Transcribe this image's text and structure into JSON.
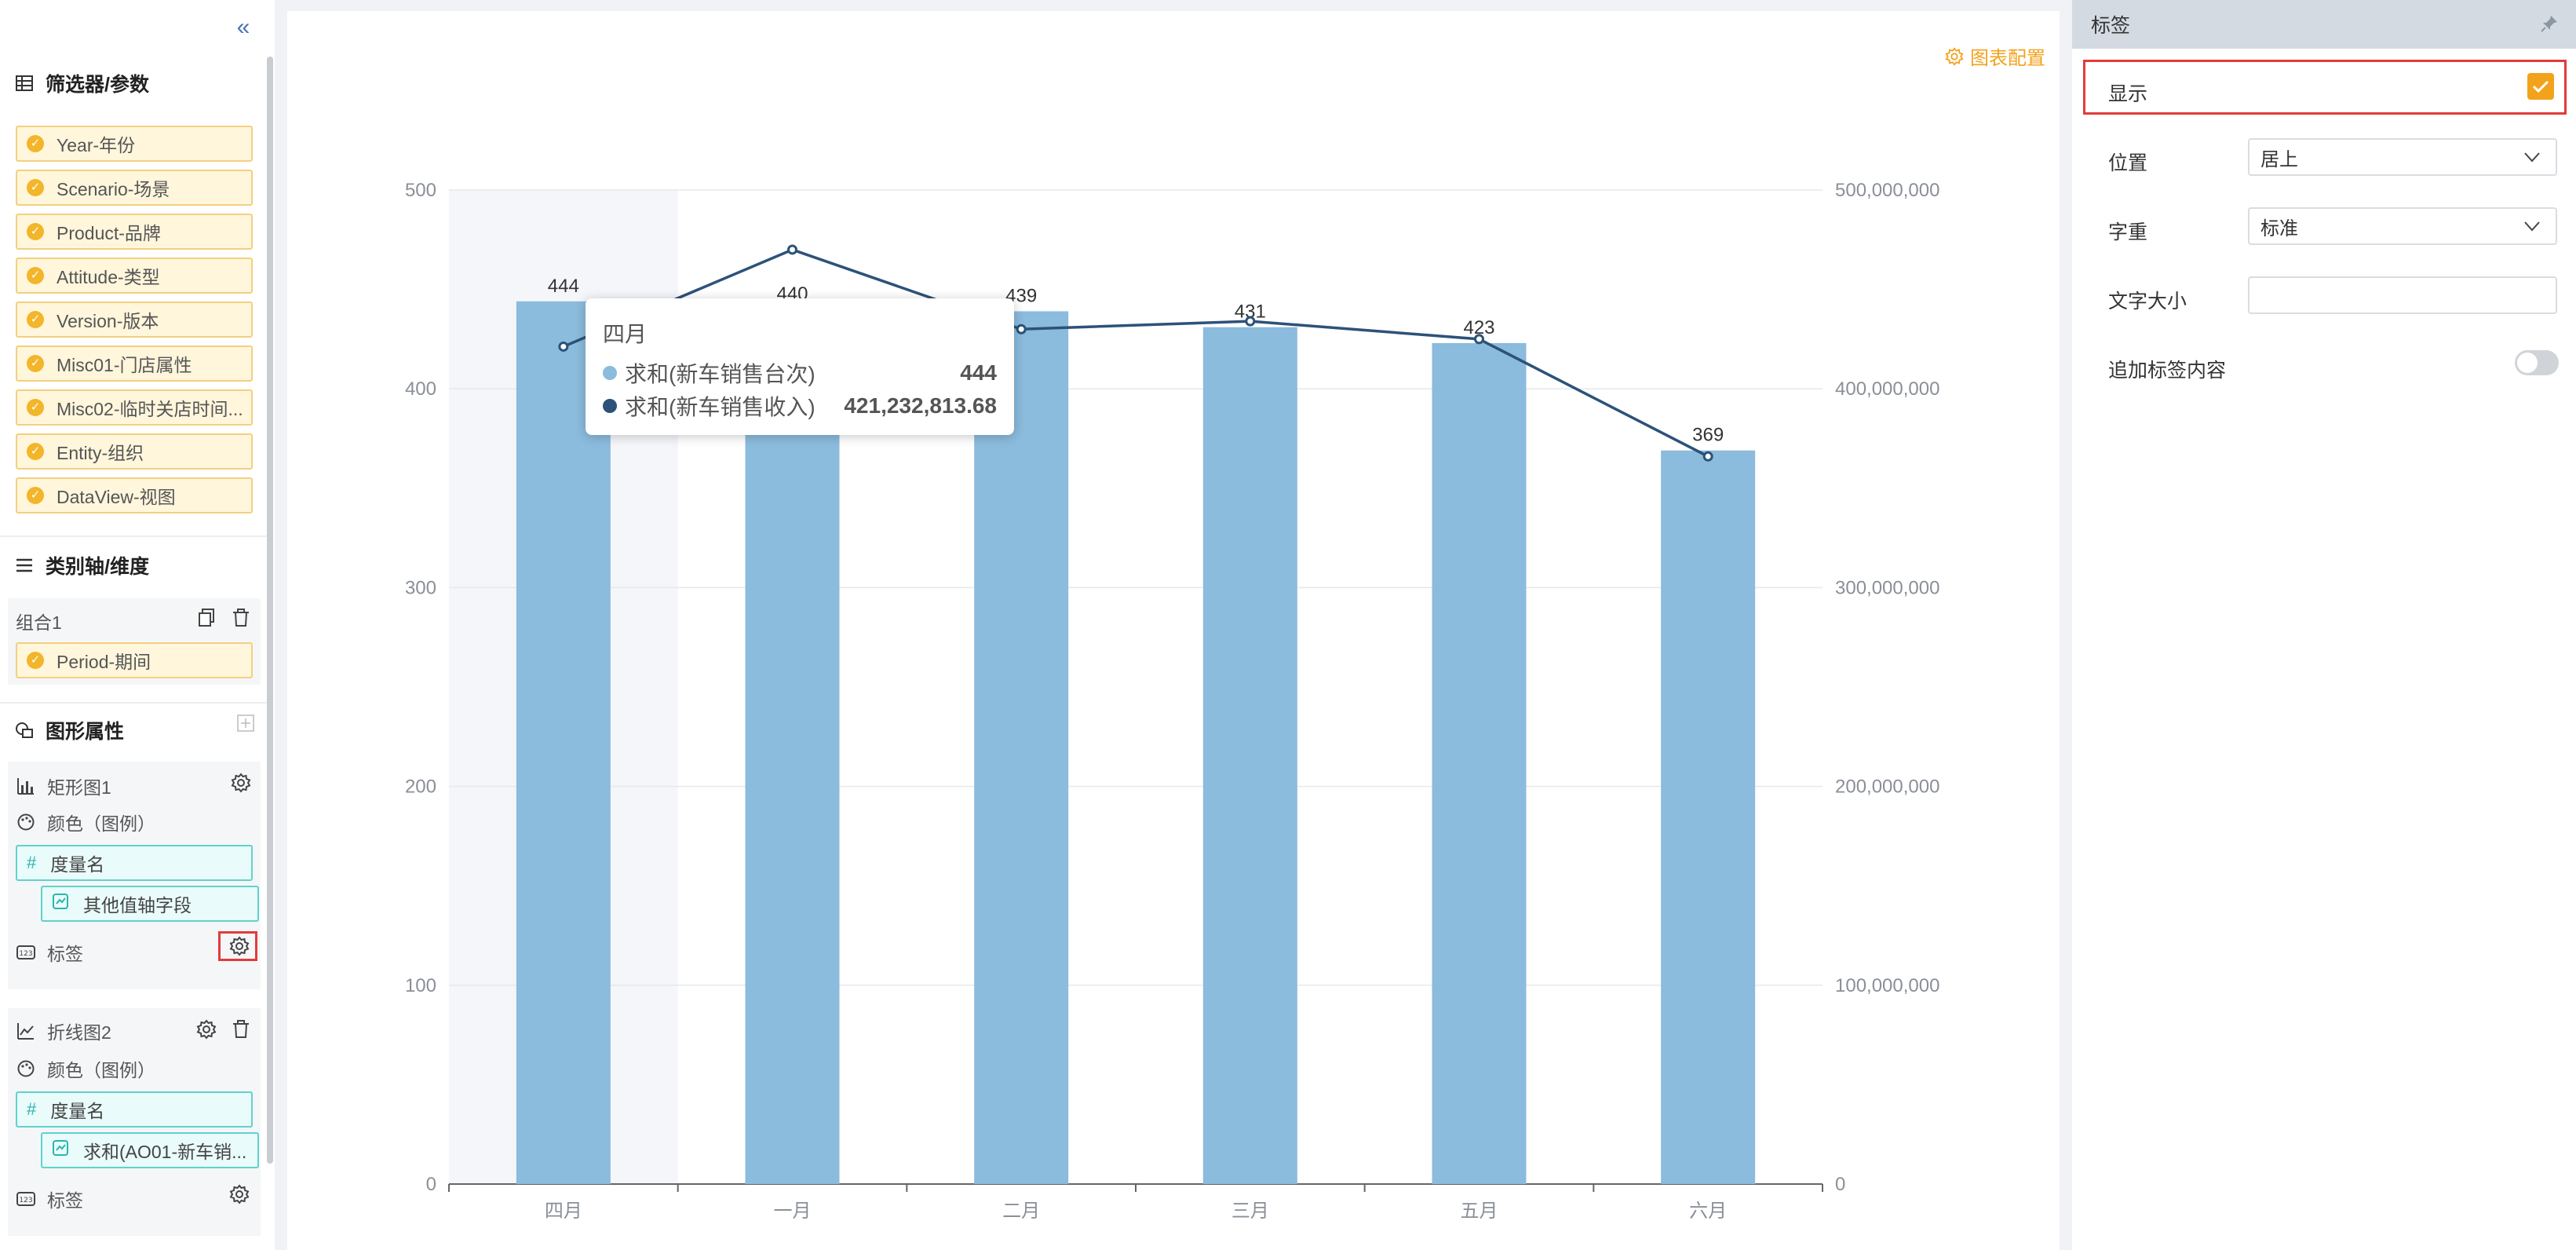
{
  "left_panel": {
    "filters": {
      "title": "筛选器/参数",
      "items": [
        "Year-年份",
        "Scenario-场景",
        "Product-品牌",
        "Attitude-类型",
        "Version-版本",
        "Misc01-门店属性",
        "Misc02-临时关店时间...",
        "Entity-组织",
        "DataView-视图"
      ]
    },
    "category_axis": {
      "title": "类别轴/维度",
      "group_label": "组合1",
      "items": [
        "Period-期间"
      ]
    },
    "shape_props": {
      "title": "图形属性",
      "bar": {
        "name": "矩形图1",
        "color_label": "颜色（图例）",
        "measure_name": "度量名",
        "sub_field": "其他值轴字段",
        "label_label": "标签"
      },
      "line": {
        "name": "折线图2",
        "color_label": "颜色（图例）",
        "measure_name": "度量名",
        "sub_field": "求和(AO01-新车销...",
        "label_label": "标签"
      }
    }
  },
  "chart_panel": {
    "config_label": "图表配置",
    "tooltip": {
      "title": "四月",
      "rows": [
        {
          "name": "求和(新车销售台次)",
          "value": "444",
          "color": "#8bbbdd"
        },
        {
          "name": "求和(新车销售收入)",
          "value": "421,232,813.68",
          "color": "#2c5279"
        }
      ]
    }
  },
  "chart_data": {
    "type": "bar",
    "categories": [
      "四月",
      "一月",
      "二月",
      "三月",
      "五月",
      "六月"
    ],
    "series": [
      {
        "values": [
          444,
          440,
          439,
          431,
          423,
          369
        ],
        "color": "#8bbbdd",
        "axis": "left"
      },
      {
        "type": "line",
        "values": [
          421232813.68,
          470000000,
          430000000,
          434000000,
          425000000,
          366000000
        ],
        "color": "#2c5279",
        "axis": "right"
      }
    ],
    "bar_labels": [
      "444",
      "440",
      "439",
      "431",
      "423",
      "369"
    ],
    "left_ticks": [
      "0",
      "100",
      "200",
      "300",
      "400",
      "500"
    ],
    "right_ticks": [
      "0",
      "100,000,000",
      "200,000,000",
      "300,000,000",
      "400,000,000",
      "500,000,000"
    ],
    "ylim_left": [
      0,
      500
    ],
    "ylim_right": [
      0,
      500000000
    ],
    "highlighted_category": "四月",
    "grid": true
  },
  "right_panel": {
    "title": "标签",
    "show_label": "显示",
    "position_label": "位置",
    "position_value": "居上",
    "weight_label": "字重",
    "weight_value": "标准",
    "font_size_label": "文字大小",
    "font_size_value": "",
    "append_label": "追加标签内容"
  }
}
